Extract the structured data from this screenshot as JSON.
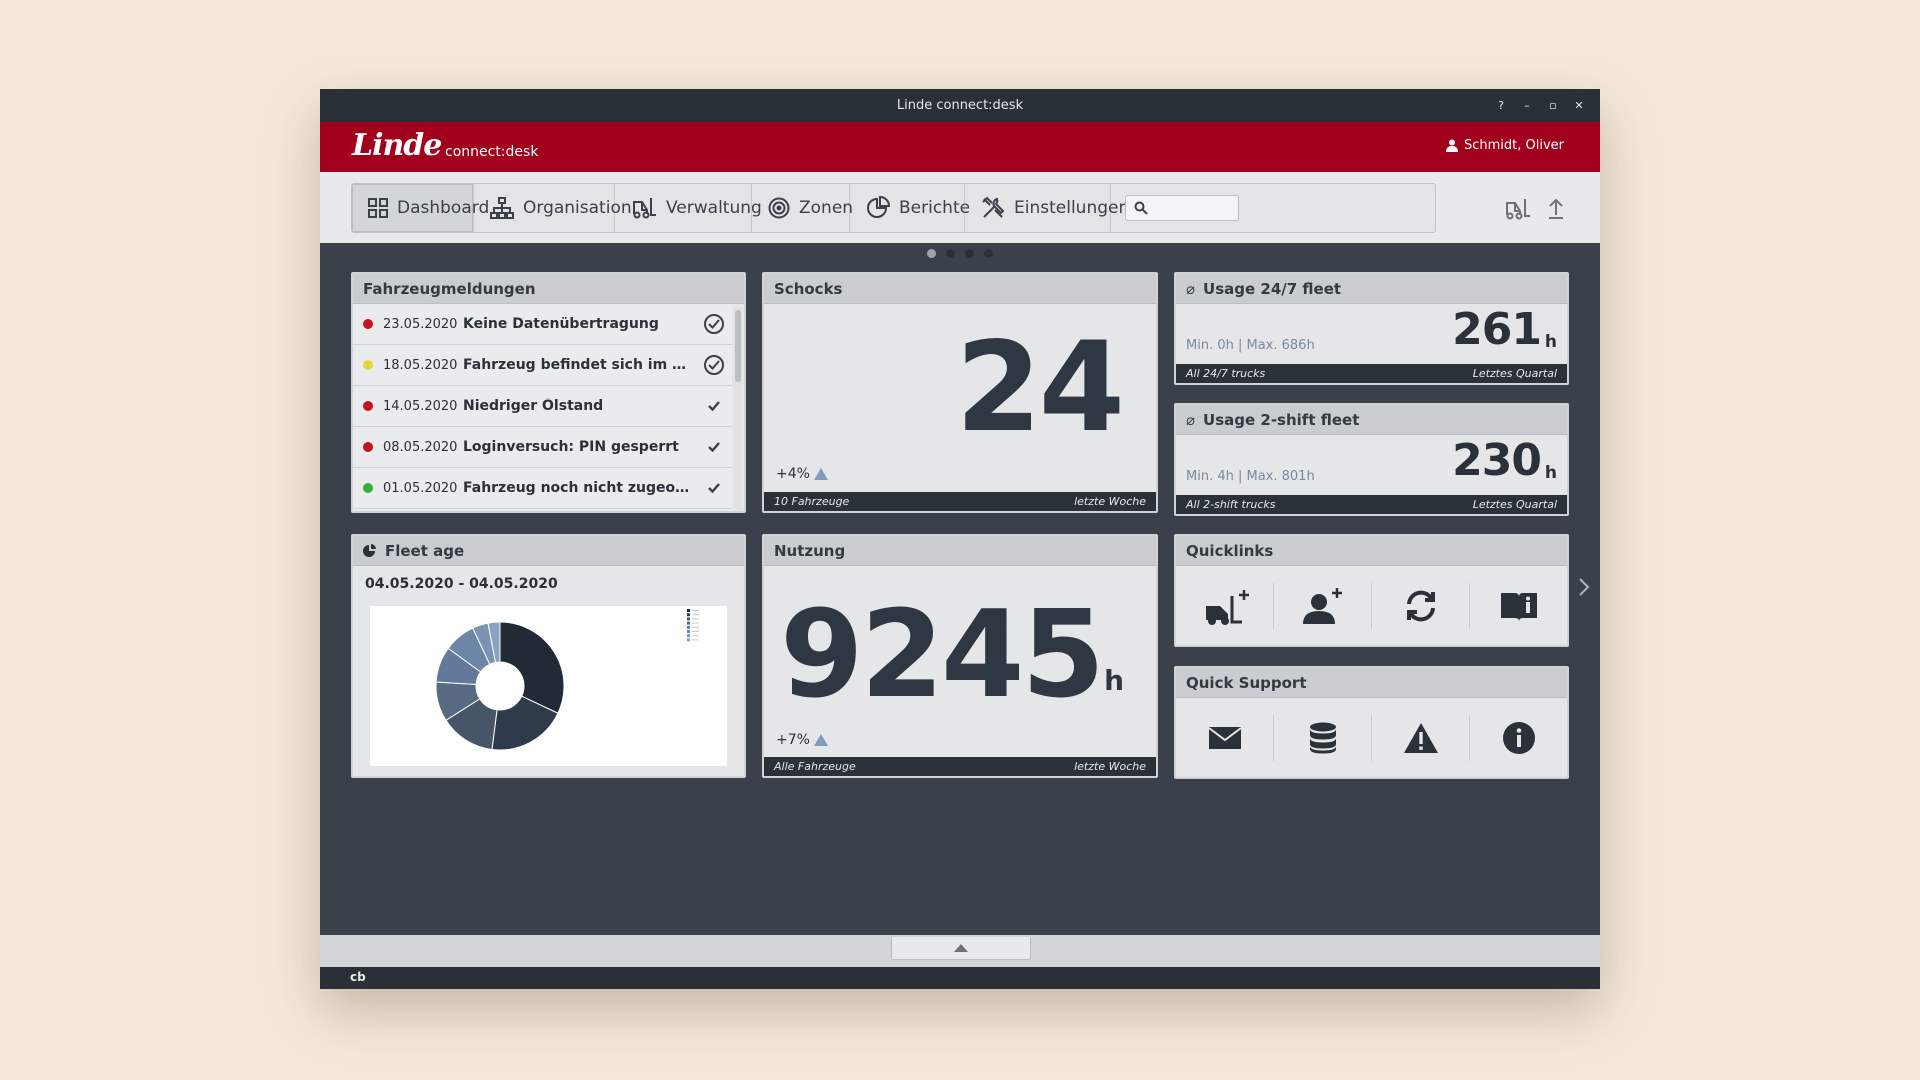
{
  "window": {
    "title": "Linde connect:desk",
    "controls": [
      "?",
      "–",
      "▫",
      "✕"
    ]
  },
  "header": {
    "logo": "Linde",
    "product": "connect:desk",
    "user": "Schmidt, Oliver"
  },
  "nav": {
    "tabs": [
      {
        "label": "Dashboard",
        "icon": "grid-icon",
        "active": true
      },
      {
        "label": "Organisation",
        "icon": "hierarchy-icon"
      },
      {
        "label": "Verwaltung",
        "icon": "forklift-icon"
      },
      {
        "label": "Zonen",
        "icon": "target-icon"
      },
      {
        "label": "Berichte",
        "icon": "pie-chart-icon"
      },
      {
        "label": "Einstellungen",
        "icon": "tools-icon"
      }
    ],
    "search_value": ""
  },
  "messages": {
    "title": "Fahrzeugmeldungen",
    "items": [
      {
        "date": "23.05.2020",
        "text": "Keine Datenübertragung",
        "color": "#c3141c",
        "check": "circle"
      },
      {
        "date": "18.05.2020",
        "text": "Fahrzeug befindet sich im Serv...",
        "color": "#e8d43a",
        "check": "circle"
      },
      {
        "date": "14.05.2020",
        "text": "Niedriger Ölstand",
        "color": "#c3141c",
        "check": "plain"
      },
      {
        "date": "08.05.2020",
        "text": "Loginversuch: PIN gesperrt",
        "color": "#c3141c",
        "check": "plain"
      },
      {
        "date": "01.05.2020",
        "text": "Fahrzeug noch nicht zugeordnet",
        "color": "#2fb13a",
        "check": "plain"
      }
    ]
  },
  "shocks": {
    "title": "Schocks",
    "value": "24",
    "trend": "+4%",
    "foot_left": "10 Fahrzeuge",
    "foot_right": "letzte Woche"
  },
  "usage247": {
    "title": "Usage 24/7 fleet",
    "value": "261",
    "unit": "h",
    "minmax": "Min. 0h | Max. 686h",
    "foot_left": "All 24/7 trucks",
    "foot_right": "Letztes Quartal"
  },
  "usage2": {
    "title": "Usage 2-shift fleet",
    "value": "230",
    "unit": "h",
    "minmax": "Min. 4h | Max. 801h",
    "foot_left": "All 2-shift trucks",
    "foot_right": "Letztes Quartal"
  },
  "fleet": {
    "title": "Fleet age",
    "range": "04.05.2020 - 04.05.2020"
  },
  "usage": {
    "title": "Nutzung",
    "value": "9245",
    "unit": "h",
    "trend": "+7%",
    "foot_left": "Alle Fahrzeuge",
    "foot_right": "letzte Woche"
  },
  "quicklinks": {
    "title": "Quicklinks",
    "icons": [
      "add-truck-icon",
      "add-user-icon",
      "refresh-icon",
      "manual-icon"
    ]
  },
  "support": {
    "title": "Quick Support",
    "icons": [
      "mail-icon",
      "database-icon",
      "warning-icon",
      "info-icon"
    ]
  },
  "status": {
    "left": "cb"
  },
  "chart_data": {
    "type": "pie",
    "donut": true,
    "values": [
      32,
      20,
      14,
      10,
      9,
      8,
      4,
      3
    ],
    "colors": [
      "#222a36",
      "#2f3a4b",
      "#475569",
      "#576a82",
      "#62799a",
      "#6c86a8",
      "#7a93b4",
      "#8aa2c1"
    ],
    "legend": "top-right"
  }
}
